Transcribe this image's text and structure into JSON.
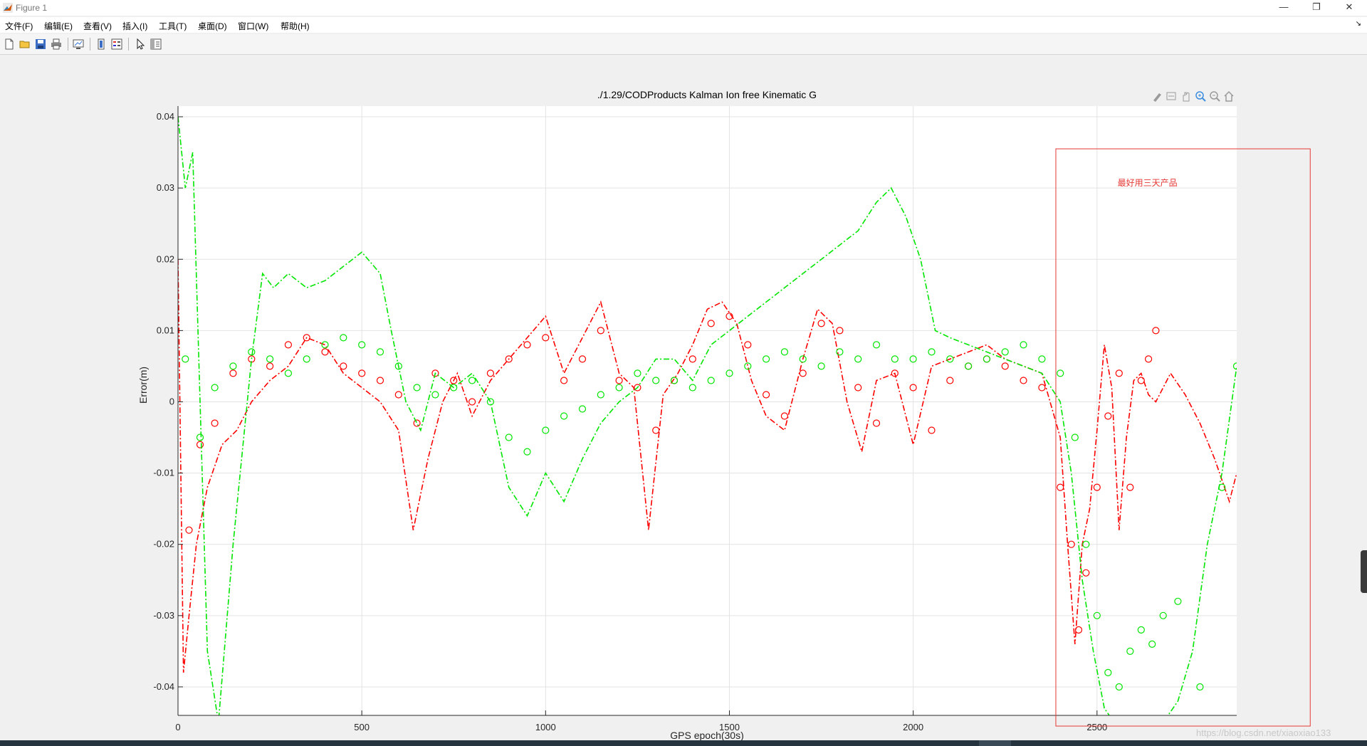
{
  "window": {
    "title": "Figure 1",
    "controls": [
      "—",
      "❐",
      "✕"
    ]
  },
  "menubar": {
    "items": [
      "文件(F)",
      "编辑(E)",
      "查看(V)",
      "插入(I)",
      "工具(T)",
      "桌面(D)",
      "窗口(W)",
      "帮助(H)"
    ],
    "overflow_arrow": "↘"
  },
  "toolbar": {
    "buttons": [
      {
        "name": "new-figure-icon"
      },
      {
        "name": "open-file-icon"
      },
      {
        "name": "save-icon"
      },
      {
        "name": "print-icon"
      },
      {
        "name": "link-plot-icon"
      },
      {
        "name": "insert-colorbar-icon"
      },
      {
        "name": "insert-legend-icon"
      },
      {
        "name": "edit-plot-arrow-icon"
      },
      {
        "name": "property-inspector-icon"
      }
    ]
  },
  "axes_toolbar": {
    "buttons": [
      "brush-icon",
      "datatip-icon",
      "pan-icon",
      "zoom-in-icon",
      "zoom-out-icon",
      "home-icon"
    ]
  },
  "colors": {
    "red_series": "#ff0000",
    "green_series": "#00e600",
    "annotation": "#e53935"
  },
  "annotation": {
    "text": "最好用三天产品",
    "x_range": [
      2388,
      3080
    ],
    "y_range": [
      -0.0455,
      0.0355
    ]
  },
  "watermark": "https://blog.csdn.net/xiaoxiao133",
  "chart_data": {
    "type": "line",
    "title": "./1.29/CODProducts Kalman Ion free Kinematic G",
    "xlabel": "GPS epoch(30s)",
    "ylabel": "Error(m)",
    "xlim": [
      0,
      2880
    ],
    "ylim": [
      -0.044,
      0.0415
    ],
    "xticks": [
      0,
      500,
      1000,
      1500,
      2000,
      2500
    ],
    "yticks": [
      -0.04,
      -0.03,
      -0.02,
      -0.01,
      0,
      0.01,
      0.02,
      0.03,
      0.04
    ],
    "grid": true,
    "series": [
      {
        "name": "red dash-dot",
        "color": "#ff0000",
        "style": "dashdot",
        "x": [
          0,
          15,
          30,
          50,
          80,
          120,
          160,
          200,
          250,
          300,
          350,
          400,
          450,
          500,
          550,
          600,
          640,
          680,
          720,
          760,
          800,
          850,
          900,
          950,
          1000,
          1050,
          1100,
          1150,
          1200,
          1240,
          1280,
          1320,
          1360,
          1400,
          1440,
          1480,
          1520,
          1560,
          1600,
          1650,
          1700,
          1740,
          1780,
          1820,
          1860,
          1900,
          1950,
          2000,
          2050,
          2100,
          2150,
          2200,
          2250,
          2300,
          2350,
          2400,
          2420,
          2440,
          2460,
          2480,
          2500,
          2520,
          2540,
          2560,
          2580,
          2600,
          2620,
          2640,
          2660,
          2700,
          2740,
          2780,
          2820,
          2860,
          2880
        ],
        "y": [
          0.02,
          -0.038,
          -0.03,
          -0.02,
          -0.012,
          -0.006,
          -0.004,
          0.0,
          0.003,
          0.005,
          0.009,
          0.008,
          0.004,
          0.002,
          0.0,
          -0.004,
          -0.018,
          -0.008,
          0.0,
          0.004,
          -0.002,
          0.003,
          0.006,
          0.009,
          0.012,
          0.004,
          0.009,
          0.014,
          0.004,
          0.002,
          -0.018,
          0.001,
          0.004,
          0.008,
          0.013,
          0.014,
          0.011,
          0.003,
          -0.002,
          -0.004,
          0.006,
          0.013,
          0.011,
          0.0,
          -0.007,
          0.003,
          0.004,
          -0.006,
          0.005,
          0.006,
          0.007,
          0.008,
          0.006,
          0.005,
          0.004,
          -0.005,
          -0.02,
          -0.034,
          -0.02,
          -0.015,
          -0.004,
          0.008,
          0.002,
          -0.018,
          -0.005,
          0.003,
          0.004,
          0.001,
          0.0,
          0.004,
          0.001,
          -0.003,
          -0.008,
          -0.014,
          -0.01
        ]
      },
      {
        "name": "red circles",
        "color": "#ff0000",
        "style": "circle",
        "x": [
          30,
          60,
          100,
          150,
          200,
          250,
          300,
          350,
          400,
          450,
          500,
          550,
          600,
          650,
          700,
          750,
          800,
          850,
          900,
          950,
          1000,
          1050,
          1100,
          1150,
          1200,
          1250,
          1300,
          1350,
          1400,
          1450,
          1500,
          1550,
          1600,
          1650,
          1700,
          1750,
          1800,
          1850,
          1900,
          1950,
          2000,
          2050,
          2100,
          2150,
          2200,
          2250,
          2300,
          2350,
          2400,
          2430,
          2450,
          2470,
          2500,
          2530,
          2560,
          2590,
          2620,
          2640,
          2660
        ],
        "y": [
          -0.018,
          -0.006,
          -0.003,
          0.004,
          0.006,
          0.005,
          0.008,
          0.009,
          0.007,
          0.005,
          0.004,
          0.003,
          0.001,
          -0.003,
          0.004,
          0.003,
          0.0,
          0.004,
          0.006,
          0.008,
          0.009,
          0.003,
          0.006,
          0.01,
          0.003,
          0.002,
          -0.004,
          0.003,
          0.006,
          0.011,
          0.012,
          0.008,
          0.001,
          -0.002,
          0.004,
          0.011,
          0.01,
          0.002,
          -0.003,
          0.004,
          0.002,
          -0.004,
          0.003,
          0.005,
          0.006,
          0.005,
          0.003,
          0.002,
          -0.012,
          -0.02,
          -0.032,
          -0.024,
          -0.012,
          -0.002,
          0.004,
          -0.012,
          0.003,
          0.006,
          0.01
        ]
      },
      {
        "name": "green dash-dot",
        "color": "#00e600",
        "style": "dashdot",
        "x": [
          0,
          20,
          40,
          60,
          80,
          110,
          150,
          200,
          230,
          260,
          300,
          350,
          400,
          450,
          500,
          550,
          580,
          620,
          660,
          700,
          750,
          800,
          850,
          900,
          950,
          1000,
          1050,
          1100,
          1150,
          1200,
          1250,
          1300,
          1350,
          1400,
          1450,
          1500,
          1550,
          1600,
          1650,
          1700,
          1750,
          1800,
          1850,
          1900,
          1940,
          1980,
          2020,
          2060,
          2100,
          2150,
          2200,
          2250,
          2300,
          2350,
          2400,
          2430,
          2460,
          2490,
          2520,
          2560,
          2600,
          2640,
          2680,
          2720,
          2760,
          2800,
          2840,
          2880
        ],
        "y": [
          0.04,
          0.03,
          0.035,
          0.0,
          -0.035,
          -0.045,
          -0.02,
          0.006,
          0.018,
          0.016,
          0.018,
          0.016,
          0.017,
          0.019,
          0.021,
          0.018,
          0.01,
          0.0,
          -0.004,
          0.004,
          0.002,
          0.004,
          0.0,
          -0.012,
          -0.016,
          -0.01,
          -0.014,
          -0.008,
          -0.003,
          0.0,
          0.002,
          0.006,
          0.006,
          0.003,
          0.008,
          0.01,
          0.012,
          0.014,
          0.016,
          0.018,
          0.02,
          0.022,
          0.024,
          0.028,
          0.03,
          0.026,
          0.02,
          0.01,
          0.009,
          0.008,
          0.007,
          0.006,
          0.005,
          0.004,
          0.0,
          -0.01,
          -0.025,
          -0.035,
          -0.043,
          -0.046,
          -0.046,
          -0.046,
          -0.045,
          -0.042,
          -0.035,
          -0.02,
          -0.01,
          0.005
        ]
      },
      {
        "name": "green circles",
        "color": "#00e600",
        "style": "circle",
        "x": [
          20,
          60,
          100,
          150,
          200,
          250,
          300,
          350,
          400,
          450,
          500,
          550,
          600,
          650,
          700,
          750,
          800,
          850,
          900,
          950,
          1000,
          1050,
          1100,
          1150,
          1200,
          1250,
          1300,
          1350,
          1400,
          1450,
          1500,
          1550,
          1600,
          1650,
          1700,
          1750,
          1800,
          1850,
          1900,
          1950,
          2000,
          2050,
          2100,
          2150,
          2200,
          2250,
          2300,
          2350,
          2400,
          2440,
          2470,
          2500,
          2530,
          2560,
          2590,
          2620,
          2650,
          2680,
          2720,
          2780,
          2840,
          2880
        ],
        "y": [
          0.006,
          -0.005,
          0.002,
          0.005,
          0.007,
          0.006,
          0.004,
          0.006,
          0.008,
          0.009,
          0.008,
          0.007,
          0.005,
          0.002,
          0.001,
          0.002,
          0.003,
          0.0,
          -0.005,
          -0.007,
          -0.004,
          -0.002,
          -0.001,
          0.001,
          0.002,
          0.004,
          0.003,
          0.003,
          0.002,
          0.003,
          0.004,
          0.005,
          0.006,
          0.007,
          0.006,
          0.005,
          0.007,
          0.006,
          0.008,
          0.006,
          0.006,
          0.007,
          0.006,
          0.005,
          0.006,
          0.007,
          0.008,
          0.006,
          0.004,
          -0.005,
          -0.02,
          -0.03,
          -0.038,
          -0.04,
          -0.035,
          -0.032,
          -0.034,
          -0.03,
          -0.028,
          -0.04,
          -0.012,
          0.005
        ]
      }
    ]
  }
}
